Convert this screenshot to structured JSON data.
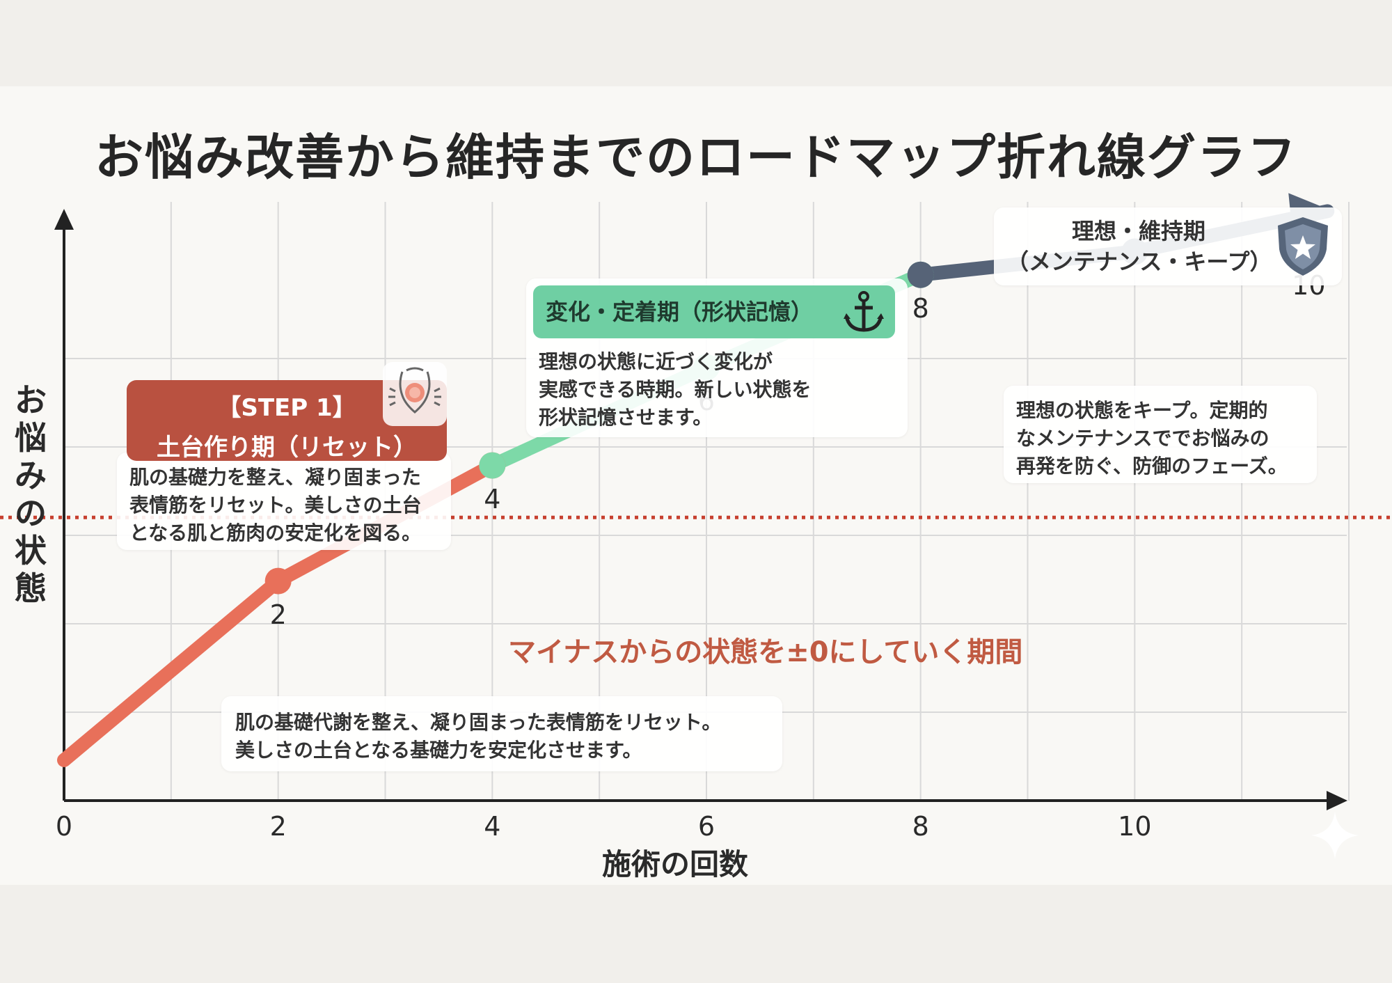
{
  "title": "お悩み改善から維持までのロードマップ折れ線グラフ",
  "chart_data": {
    "type": "line",
    "title": "お悩み改善から維持までのロードマップ折れ線グラフ",
    "xlabel": "施術の回数",
    "ylabel": "お悩みの状態",
    "xlim": [
      0,
      12
    ],
    "ylim": [
      0,
      10
    ],
    "x_ticks": [
      "0",
      "2",
      "4",
      "6",
      "8",
      "10"
    ],
    "grid": true,
    "series": [
      {
        "phase": "STEP 1 土台作り期",
        "color": "#e8705a",
        "x": [
          0,
          2,
          4
        ],
        "y": [
          0.7,
          3.8,
          5.8
        ]
      },
      {
        "phase": "変化・定着期",
        "color": "#7dd9a8",
        "x": [
          4,
          6,
          8
        ],
        "y": [
          5.8,
          7.5,
          9.1
        ]
      },
      {
        "phase": "理想・維持期",
        "color": "#566377",
        "x": [
          8,
          10,
          11.8
        ],
        "y": [
          9.1,
          9.5,
          10.2
        ]
      }
    ],
    "point_labels": [
      {
        "label": "2",
        "x": 2,
        "y": 3.8
      },
      {
        "label": "4",
        "x": 4,
        "y": 5.8
      },
      {
        "label": "6",
        "x": 6,
        "y": 7.5
      },
      {
        "label": "8",
        "x": 8,
        "y": 9.1
      },
      {
        "label": "10",
        "x": 10,
        "y": 9.5
      }
    ],
    "reference_line": {
      "y": 4.9,
      "style": "dotted",
      "color": "#c7402f",
      "label": "マイナスからの状態を±0にしていく期間"
    }
  },
  "annotations": {
    "step1_tag": "【STEP 1】",
    "step1_title": "土台作り期（リセット）",
    "step1_desc": "肌の基礎力を整え、凝り固まった\n表情筋をリセット。美しさの土台\nとなる肌と筋肉の安定化を図る。",
    "bottom_desc": "肌の基礎代謝を整え、凝り固まった表情筋をリセット。\n美しさの土台となる基礎力を安定化させます。",
    "phase2_title": "変化・定着期（形状記憶）",
    "phase2_desc": "理想の状態に近づく変化が\n実感できる時期。新しい状態を\n形状記憶させます。",
    "phase3_title": "理想・維持期\n（メンテナンス・キープ）",
    "phase3_desc": "理想の状態をキープ。定期的\nなメンテナンスででお悩みの\n再発を防ぐ、防御のフェーズ。"
  },
  "icons": {
    "step1": "face-icon",
    "phase2": "anchor-icon",
    "phase3": "shield-star-icon",
    "corner": "sparkle-icon"
  },
  "colors": {
    "step1": "#e8705a",
    "step1_pill": "#b95140",
    "phase2": "#7dd9a8",
    "phase3": "#566377",
    "reference": "#c7402f"
  }
}
